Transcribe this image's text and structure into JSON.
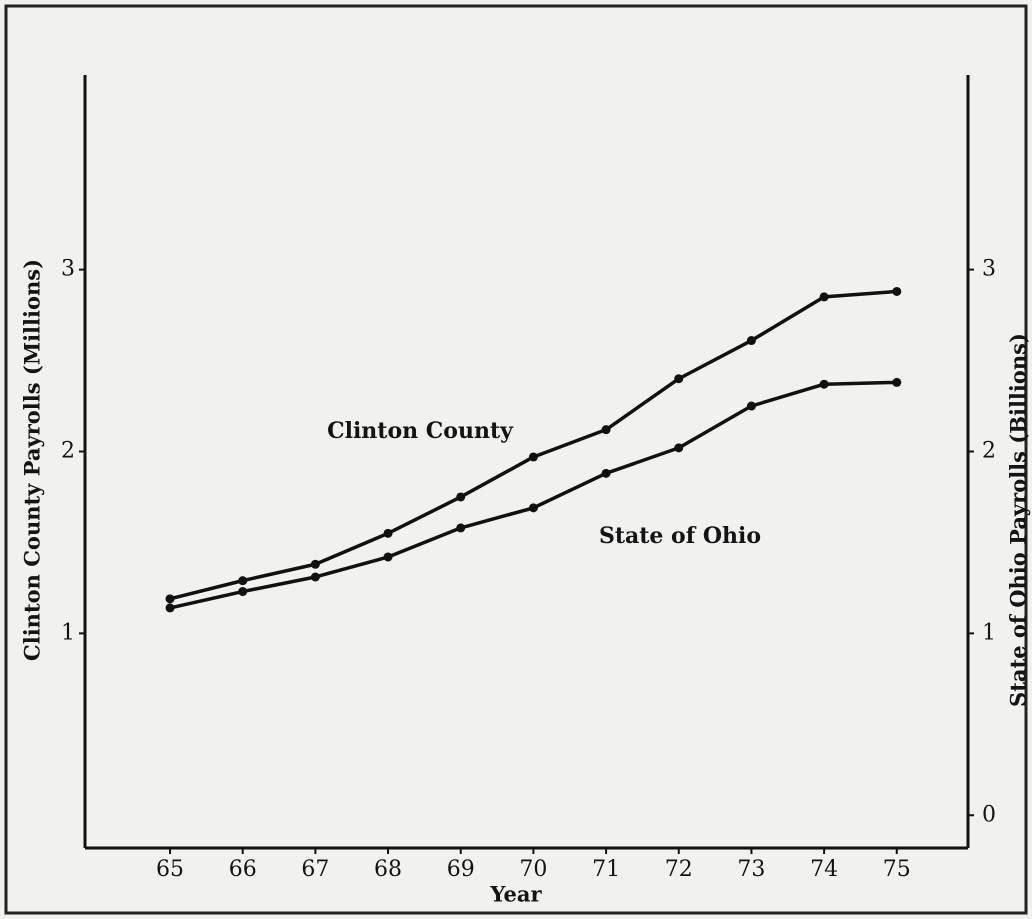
{
  "chart_data": {
    "type": "line",
    "xlabel": "Year",
    "ylabel": "Clinton County Payrolls (Millions)",
    "y2label": "State of Ohio Payrolls (Billions)",
    "x": [
      65,
      66,
      67,
      68,
      69,
      70,
      71,
      72,
      73,
      74,
      75
    ],
    "xlim": [
      63.83,
      75.98
    ],
    "xticks": [
      65,
      66,
      67,
      68,
      69,
      70,
      71,
      72,
      73,
      74,
      75
    ],
    "ylim": [
      -0.18,
      4.07
    ],
    "yticks": [
      1,
      2,
      3
    ],
    "y2lim": [
      -0.18,
      4.07
    ],
    "y2ticks": [
      0,
      1,
      2,
      3
    ],
    "series": [
      {
        "name": "Clinton County",
        "color": "#111111",
        "values": [
          1.19,
          1.29,
          1.38,
          1.55,
          1.75,
          1.97,
          2.12,
          2.4,
          2.61,
          2.85,
          2.88
        ]
      },
      {
        "name": "State of Ohio",
        "color": "#111111",
        "axis": "y2",
        "values": [
          1.14,
          1.23,
          1.31,
          1.42,
          1.58,
          1.69,
          1.88,
          2.02,
          2.25,
          2.37,
          2.38
        ]
      }
    ]
  }
}
